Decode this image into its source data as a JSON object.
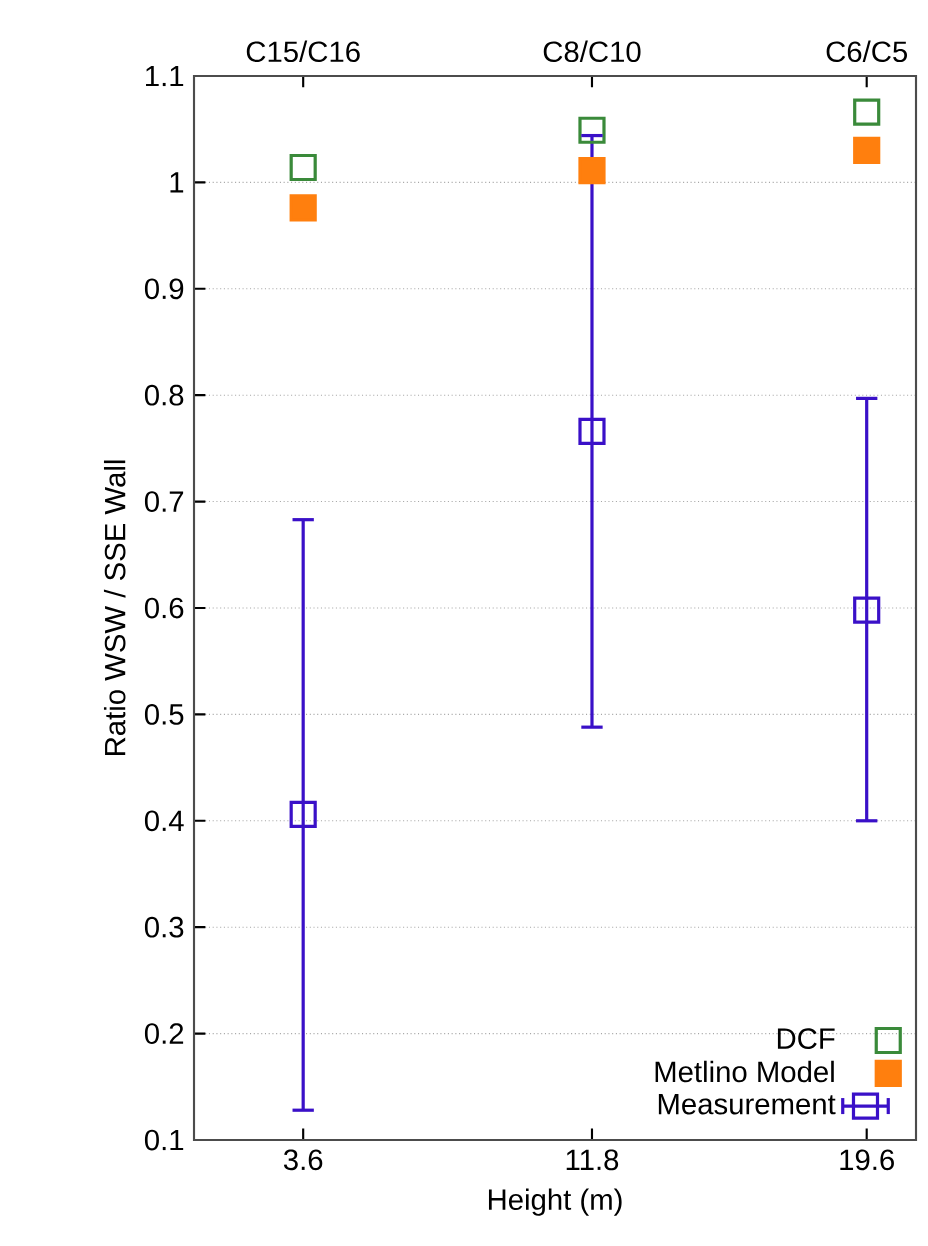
{
  "chart_data": {
    "type": "scatter",
    "xlabel": "Height (m)",
    "ylabel": "Ratio WSW / SSE Wall",
    "x": [
      3.6,
      11.8,
      19.6
    ],
    "xlim": [
      0.5,
      21
    ],
    "xticks": [
      3.6,
      11.8,
      19.6
    ],
    "annotations": [
      {
        "text": "C15/C16",
        "x": 3.6
      },
      {
        "text": "C8/C10",
        "x": 11.8
      },
      {
        "text": "C6/C5",
        "x": 19.6
      }
    ],
    "ylim": [
      0.1,
      1.1
    ],
    "yticks": [
      0.1,
      0.2,
      0.3,
      0.4,
      0.5,
      0.6,
      0.7,
      0.8,
      0.9,
      1,
      1.1
    ],
    "grid": "y",
    "legend": "bottom right",
    "marker": "square",
    "series": [
      {
        "name": "DCF",
        "color": "#3a8a3a",
        "values": [
          1.014,
          1.049,
          1.066
        ]
      },
      {
        "name": "Metlino Model",
        "color": "#ff7f0e",
        "values": [
          0.976,
          1.011,
          1.03
        ],
        "marker": "square"
      },
      {
        "name": "Measurement",
        "color": "#3a10c8",
        "values": [
          0.406,
          0.766,
          0.598
        ],
        "errors": [
          [
            0.128,
            0.683
          ],
          [
            0.488,
            1.044
          ],
          [
            0.4,
            0.797
          ]
        ]
      }
    ]
  }
}
